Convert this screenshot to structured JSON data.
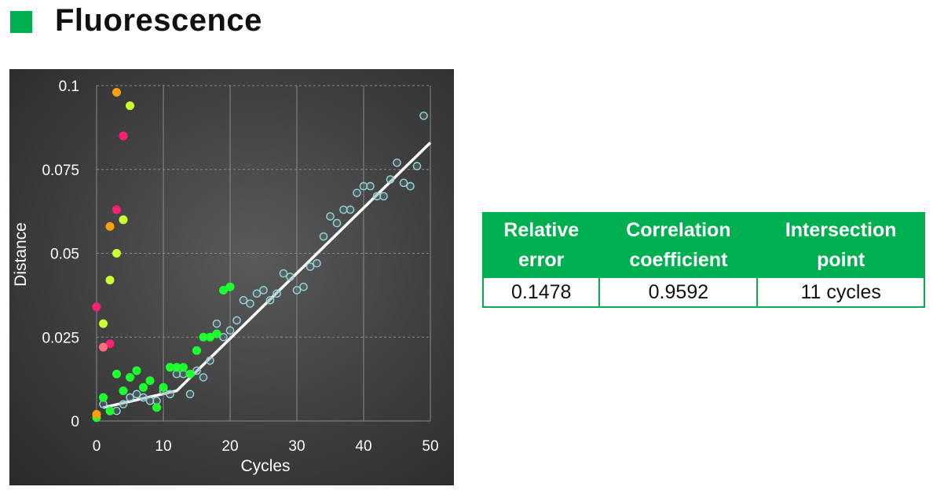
{
  "title": "Fluorescence",
  "colors": {
    "accent": "#00b050",
    "fit_line": "#ffffff",
    "cyan_marker": "#8fd8dc",
    "green_marker": "#1eff2e",
    "lime_marker": "#ccff33",
    "orange_marker": "#ffa010",
    "pink_marker": "#ff1f73",
    "salmon_marker": "#ff6f7a"
  },
  "chart_data": {
    "type": "scatter",
    "title": "",
    "xlabel": "Cycles",
    "ylabel": "Distance",
    "xlim": [
      0,
      50
    ],
    "ylim": [
      0,
      0.1
    ],
    "x_ticks": [
      "0",
      "10",
      "20",
      "30",
      "40",
      "50"
    ],
    "y_ticks": [
      "0",
      "0.025",
      "0.05",
      "0.075",
      "0.1"
    ],
    "grid": true,
    "legend": "none",
    "series": [
      {
        "color": "#8fd8dc",
        "style": "hollow",
        "points": [
          [
            1,
            0.005
          ],
          [
            3,
            0.003
          ],
          [
            4,
            0.005
          ],
          [
            5,
            0.007
          ],
          [
            6,
            0.008
          ],
          [
            7,
            0.007
          ],
          [
            8,
            0.006
          ],
          [
            9,
            0.006
          ],
          [
            10,
            0.009
          ],
          [
            11,
            0.008
          ],
          [
            12,
            0.014
          ],
          [
            13,
            0.014
          ],
          [
            14,
            0.008
          ],
          [
            15,
            0.015
          ],
          [
            16,
            0.013
          ],
          [
            17,
            0.018
          ],
          [
            18,
            0.029
          ],
          [
            19,
            0.025
          ],
          [
            20,
            0.027
          ],
          [
            21,
            0.03
          ],
          [
            22,
            0.036
          ],
          [
            23,
            0.035
          ],
          [
            24,
            0.038
          ],
          [
            25,
            0.039
          ],
          [
            26,
            0.036
          ],
          [
            27,
            0.038
          ],
          [
            28,
            0.044
          ],
          [
            29,
            0.043
          ],
          [
            30,
            0.039
          ],
          [
            31,
            0.04
          ],
          [
            32,
            0.046
          ],
          [
            33,
            0.047
          ],
          [
            34,
            0.055
          ],
          [
            35,
            0.061
          ],
          [
            36,
            0.059
          ],
          [
            37,
            0.063
          ],
          [
            38,
            0.063
          ],
          [
            39,
            0.068
          ],
          [
            40,
            0.07
          ],
          [
            41,
            0.07
          ],
          [
            42,
            0.067
          ],
          [
            43,
            0.067
          ],
          [
            44,
            0.072
          ],
          [
            45,
            0.077
          ],
          [
            46,
            0.071
          ],
          [
            47,
            0.07
          ],
          [
            48,
            0.076
          ],
          [
            49,
            0.091
          ]
        ]
      },
      {
        "color": "#1eff2e",
        "style": "filled",
        "points": [
          [
            0,
            0.001
          ],
          [
            1,
            0.007
          ],
          [
            2,
            0.003
          ],
          [
            3,
            0.014
          ],
          [
            4,
            0.009
          ],
          [
            5,
            0.013
          ],
          [
            6,
            0.015
          ],
          [
            7,
            0.01
          ],
          [
            8,
            0.012
          ],
          [
            9,
            0.004
          ],
          [
            10,
            0.01
          ],
          [
            11,
            0.016
          ],
          [
            12,
            0.016
          ],
          [
            13,
            0.016
          ],
          [
            14,
            0.014
          ],
          [
            15,
            0.021
          ],
          [
            16,
            0.025
          ],
          [
            17,
            0.025
          ],
          [
            18,
            0.026
          ],
          [
            19,
            0.039
          ],
          [
            20,
            0.04
          ]
        ]
      },
      {
        "color": "#ccff33",
        "style": "filled",
        "points": [
          [
            5,
            0.094
          ],
          [
            4,
            0.06
          ],
          [
            3,
            0.05
          ],
          [
            2,
            0.042
          ],
          [
            1,
            0.029
          ]
        ]
      },
      {
        "color": "#ffa010",
        "style": "filled",
        "points": [
          [
            3,
            0.098
          ],
          [
            2,
            0.058
          ],
          [
            0,
            0.002
          ]
        ]
      },
      {
        "color": "#ff1f73",
        "style": "filled",
        "points": [
          [
            4,
            0.085
          ],
          [
            3,
            0.063
          ],
          [
            0,
            0.034
          ],
          [
            2,
            0.023
          ]
        ]
      },
      {
        "color": "#ff6f7a",
        "style": "filled",
        "points": [
          [
            1,
            0.022
          ]
        ]
      }
    ],
    "fit_line": [
      [
        1,
        0.004
      ],
      [
        12,
        0.009
      ],
      [
        50,
        0.083
      ]
    ]
  },
  "table": {
    "headers": [
      [
        "Relative",
        "error"
      ],
      [
        "Correlation",
        "coefficient"
      ],
      [
        "Intersection",
        "point"
      ]
    ],
    "values": [
      "0.1478",
      "0.9592",
      "11 cycles"
    ]
  }
}
